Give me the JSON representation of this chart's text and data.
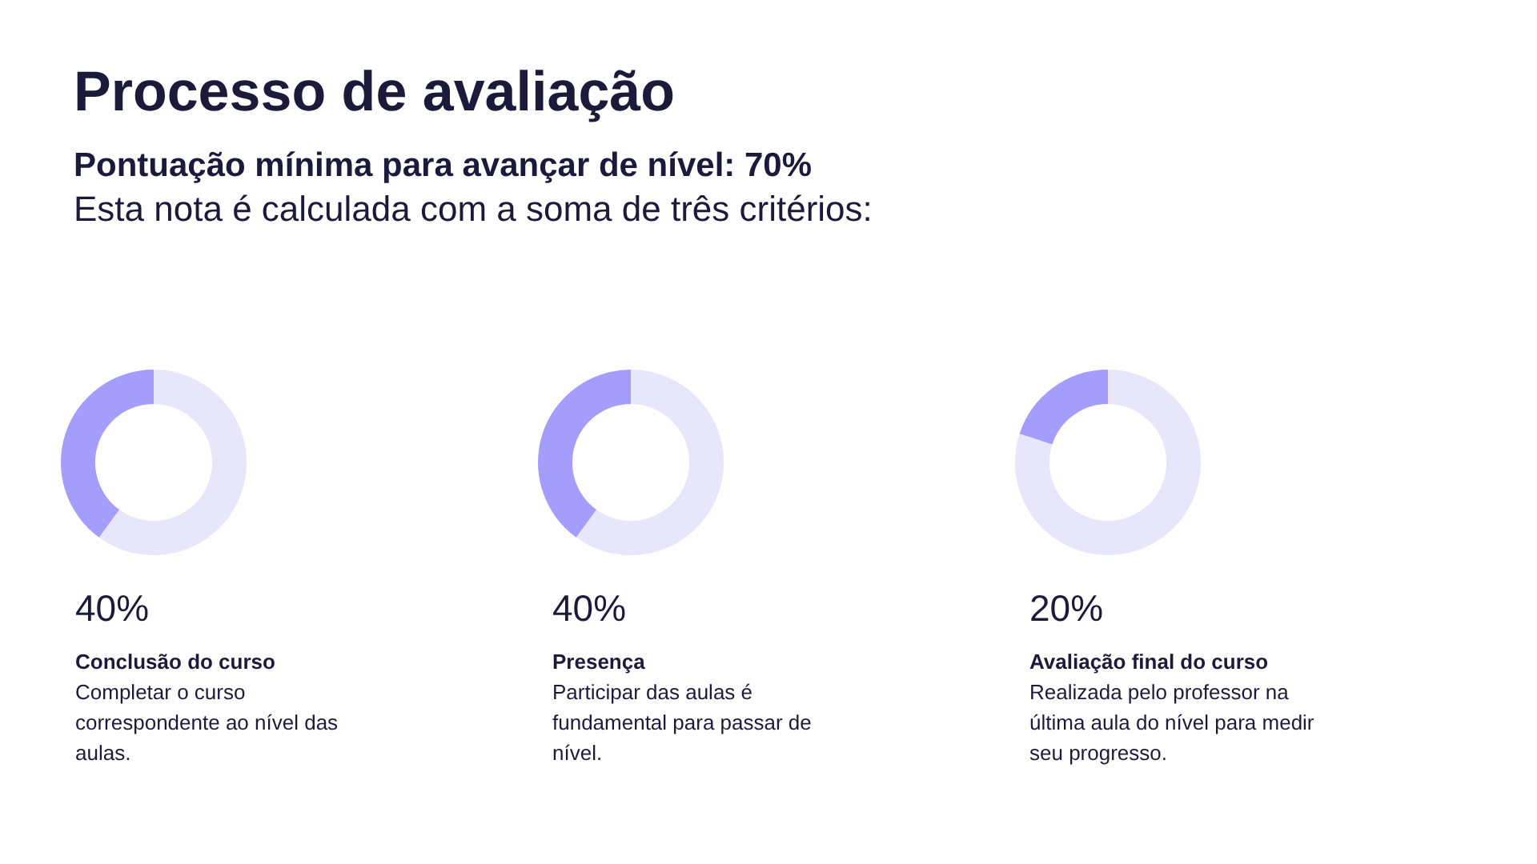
{
  "chart_data": [
    {
      "type": "other",
      "title": "Processo de avaliação",
      "subtitle": "Pontuação mínima para avançar de nível: 70%",
      "annotations": [
        "Esta nota é calculada com a soma de três critérios:"
      ]
    },
    {
      "type": "donut",
      "title": "Conclusão do curso",
      "categories": [
        null,
        null
      ],
      "values": [
        60,
        40
      ],
      "colors": [
        "#e8e6fb",
        "#a59dfb"
      ],
      "annotations": [
        "40%",
        "Completar o curso correspondente ao nível das aulas."
      ]
    },
    {
      "type": "donut",
      "title": "Presença",
      "categories": [
        null,
        null
      ],
      "values": [
        60,
        40
      ],
      "colors": [
        "#e8e6fb",
        "#a59dfb"
      ],
      "annotations": [
        "40%",
        "Participar das aulas é fundamental para passar de nível."
      ]
    },
    {
      "type": "donut",
      "title": "Avaliação final do curso",
      "categories": [
        null,
        null
      ],
      "values": [
        80,
        20
      ],
      "colors": [
        "#e8e6fb",
        "#a59dfb"
      ],
      "annotations": [
        "20%",
        "Realizada pelo professor na última aula do nível para medir seu progresso."
      ]
    }
  ]
}
